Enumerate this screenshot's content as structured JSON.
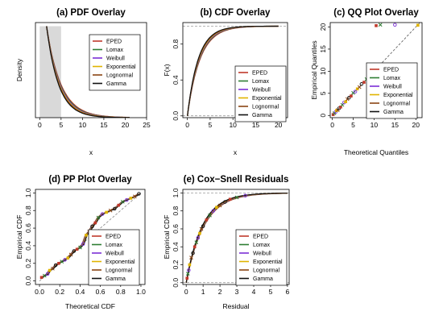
{
  "legend_entries": [
    {
      "name": "EPED",
      "color": "#c0392b"
    },
    {
      "name": "Lomax",
      "color": "#2e7d32"
    },
    {
      "name": "Weibull",
      "color": "#7b2fd6"
    },
    {
      "name": "Exponential",
      "color": "#e0b400"
    },
    {
      "name": "Lognormal",
      "color": "#8b4513"
    },
    {
      "name": "Gamma",
      "color": "#111111"
    }
  ],
  "chart_data": [
    {
      "type": "area",
      "title": "(a) PDF Overlay",
      "xlabel": "x",
      "ylabel": "Density",
      "xlim": [
        -1,
        25
      ],
      "ylim": [
        0,
        0.52
      ],
      "x_ticks": [
        "0",
        "5",
        "10",
        "15",
        "20",
        "25"
      ],
      "y_ticks": [],
      "histogram": {
        "bin_edges": [
          0,
          5
        ],
        "densities": [
          0.5
        ]
      },
      "density_model": "exponential-like decay, rate ≈ 0.33",
      "legend_position": "right"
    },
    {
      "type": "line",
      "title": "(b) CDF Overlay",
      "xlabel": "x",
      "ylabel": "F(x)",
      "xlim": [
        -1,
        22
      ],
      "ylim": [
        -0.02,
        1.04
      ],
      "x_ticks": [
        "0",
        "5",
        "10",
        "15",
        "20"
      ],
      "y_ticks": [
        "0.0",
        "0.4",
        "0.8"
      ],
      "cdf_model": "1 - exp(-0.38 x)",
      "reference_lines": [
        0,
        1
      ],
      "legend_position": "bottom-right"
    },
    {
      "type": "scatter",
      "title": "(c) QQ Plot Overlay",
      "xlabel": "Theoretical Quantiles",
      "ylabel": "Empirical Quantiles",
      "xlim": [
        -0.5,
        21.5
      ],
      "ylim": [
        -0.5,
        21
      ],
      "x_ticks": [
        "0",
        "5",
        "10",
        "15",
        "20"
      ],
      "y_ticks": [
        "0",
        "5",
        "10",
        "15",
        "20"
      ],
      "points": [
        [
          0.2,
          0.2
        ],
        [
          0.5,
          0.5
        ],
        [
          0.8,
          0.8
        ],
        [
          1.0,
          1.1
        ],
        [
          1.3,
          1.2
        ],
        [
          1.6,
          1.6
        ],
        [
          2.0,
          1.9
        ],
        [
          2.4,
          2.4
        ],
        [
          2.8,
          2.9
        ],
        [
          3.2,
          3.1
        ],
        [
          3.6,
          3.7
        ],
        [
          4.0,
          4.0
        ],
        [
          4.5,
          4.4
        ],
        [
          5.0,
          5.1
        ],
        [
          5.5,
          5.4
        ],
        [
          6.0,
          6.0
        ],
        [
          6.5,
          6.4
        ],
        [
          7.0,
          7.1
        ],
        [
          7.6,
          7.5
        ],
        [
          8.2,
          8.2
        ],
        [
          8.8,
          8.9
        ],
        [
          9.3,
          9.1
        ],
        [
          9.8,
          7.2
        ],
        [
          10.0,
          10.4
        ],
        [
          10.5,
          20.3
        ],
        [
          11.5,
          20.5
        ],
        [
          15.0,
          20.5
        ],
        [
          20.5,
          20.4
        ]
      ],
      "reference_line": "y = x (dashed)",
      "legend_position": "bottom-right"
    },
    {
      "type": "scatter",
      "title": "(d) PP Plot Overlay",
      "xlabel": "Theoretical CDF",
      "ylabel": "Empirical CDF",
      "xlim": [
        -0.04,
        1.04
      ],
      "ylim": [
        -0.04,
        1.04
      ],
      "x_ticks": [
        "0.0",
        "0.2",
        "0.4",
        "0.6",
        "0.8",
        "1.0"
      ],
      "y_ticks": [
        "0.0",
        "0.2",
        "0.4",
        "0.6",
        "0.8",
        "1.0"
      ],
      "points": [
        [
          0.02,
          0.04
        ],
        [
          0.05,
          0.06
        ],
        [
          0.08,
          0.08
        ],
        [
          0.1,
          0.12
        ],
        [
          0.13,
          0.14
        ],
        [
          0.16,
          0.18
        ],
        [
          0.19,
          0.2
        ],
        [
          0.22,
          0.22
        ],
        [
          0.25,
          0.24
        ],
        [
          0.28,
          0.26
        ],
        [
          0.31,
          0.3
        ],
        [
          0.34,
          0.34
        ],
        [
          0.37,
          0.36
        ],
        [
          0.4,
          0.38
        ],
        [
          0.43,
          0.42
        ],
        [
          0.46,
          0.52
        ],
        [
          0.49,
          0.56
        ],
        [
          0.52,
          0.62
        ],
        [
          0.55,
          0.66
        ],
        [
          0.58,
          0.72
        ],
        [
          0.62,
          0.76
        ],
        [
          0.66,
          0.78
        ],
        [
          0.7,
          0.8
        ],
        [
          0.74,
          0.82
        ],
        [
          0.78,
          0.86
        ],
        [
          0.82,
          0.9
        ],
        [
          0.86,
          0.92
        ],
        [
          0.9,
          0.94
        ],
        [
          0.94,
          0.96
        ],
        [
          0.98,
          0.99
        ]
      ],
      "legend_position": "bottom-right"
    },
    {
      "type": "line",
      "title": "(e) Cox−Snell Residuals",
      "xlabel": "Residual",
      "ylabel": "Empirical CDF",
      "xlim": [
        -0.2,
        6.1
      ],
      "ylim": [
        -0.02,
        1.04
      ],
      "x_ticks": [
        "0",
        "1",
        "2",
        "3",
        "4",
        "5",
        "6"
      ],
      "y_ticks": [
        "0.0",
        "0.2",
        "0.4",
        "0.6",
        "0.8",
        "1.0"
      ],
      "cdf_model": "1 - exp(-r)",
      "points": [
        [
          0.05,
          0.05
        ],
        [
          0.1,
          0.1
        ],
        [
          0.15,
          0.14
        ],
        [
          0.2,
          0.2
        ],
        [
          0.3,
          0.28
        ],
        [
          0.4,
          0.33
        ],
        [
          0.5,
          0.4
        ],
        [
          0.6,
          0.45
        ],
        [
          0.7,
          0.5
        ],
        [
          0.8,
          0.55
        ],
        [
          0.9,
          0.6
        ],
        [
          1.0,
          0.63
        ],
        [
          1.2,
          0.7
        ],
        [
          1.4,
          0.75
        ],
        [
          1.6,
          0.8
        ],
        [
          1.8,
          0.84
        ],
        [
          2.0,
          0.86
        ],
        [
          2.3,
          0.9
        ],
        [
          2.6,
          0.93
        ],
        [
          3.0,
          0.95
        ],
        [
          3.5,
          0.97
        ]
      ],
      "reference_lines": [
        0,
        1
      ],
      "legend_position": "bottom-right"
    }
  ]
}
